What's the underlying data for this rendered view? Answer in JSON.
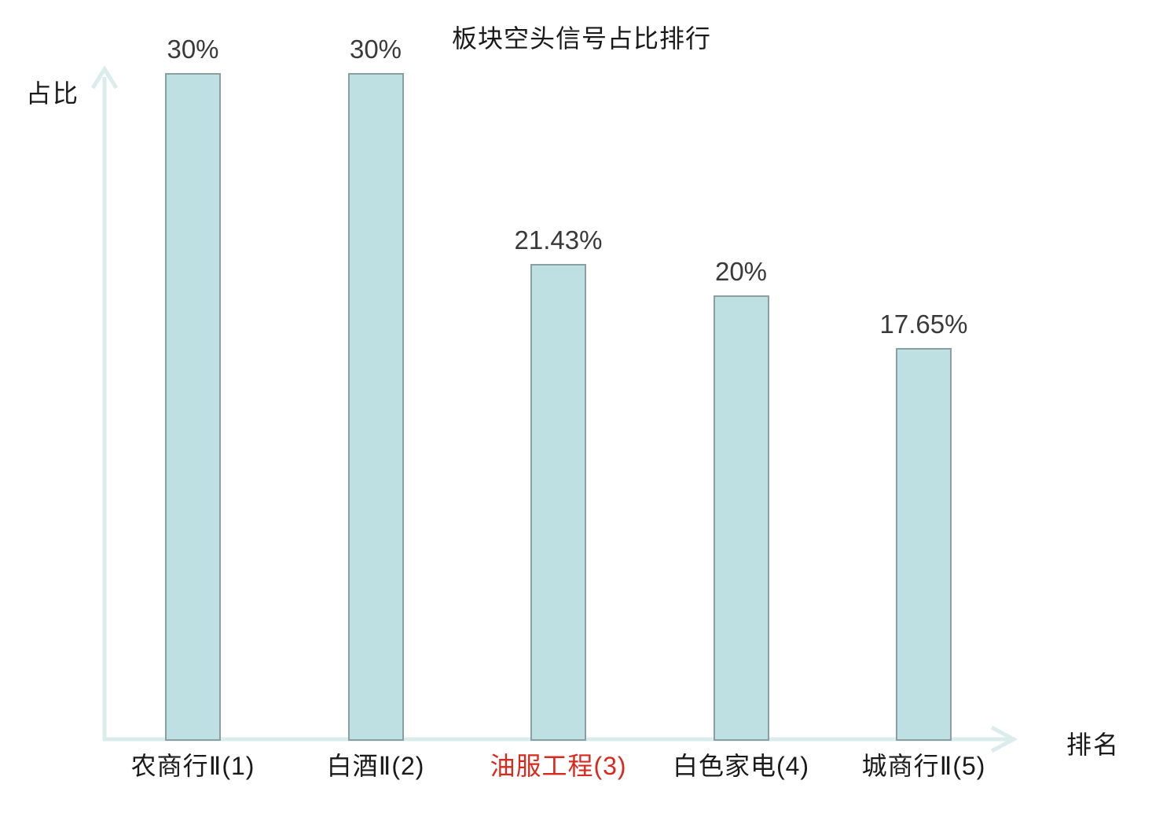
{
  "chart_data": {
    "type": "bar",
    "title": "板块空头信号占比排行",
    "xlabel": "排名",
    "ylabel": "占比",
    "categories": [
      "农商行Ⅱ(1)",
      "白酒Ⅱ(2)",
      "油服工程(3)",
      "白色家电(4)",
      "城商行Ⅱ(5)"
    ],
    "values": [
      30,
      30,
      21.43,
      20,
      17.65
    ],
    "value_labels": [
      "30%",
      "30%",
      "21.43%",
      "20%",
      "17.65%"
    ],
    "ylim": [
      0,
      30
    ],
    "grid": false,
    "legend": null,
    "highlight_index": 2,
    "colors": {
      "bar_fill": "#bfe0e3",
      "bar_border": "#8a9fa2",
      "axis": "#daeceb",
      "value_label": "#3a3a3a",
      "category_label": "#1a1a1a",
      "highlight_category": "#d9291e",
      "title": "#1a1a1a"
    }
  }
}
